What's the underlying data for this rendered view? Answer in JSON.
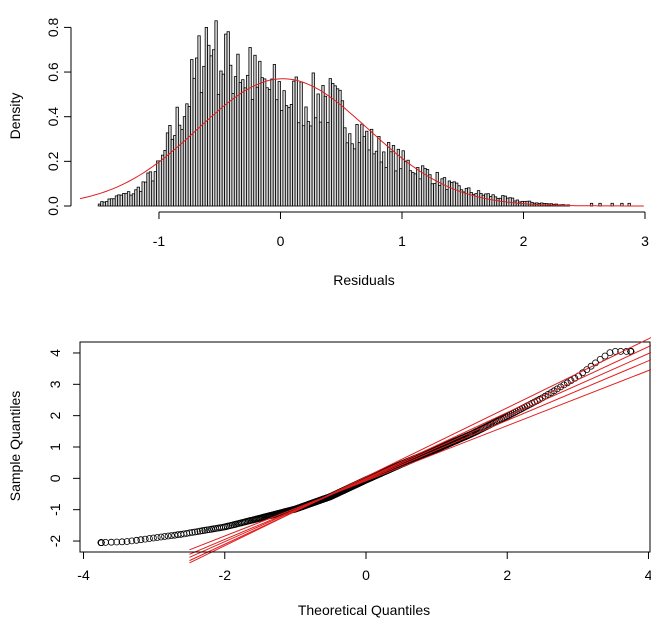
{
  "chart_data": [
    {
      "type": "histogram",
      "xlabel": "Residuals",
      "ylabel": "Density",
      "xlim": [
        -1.65,
        3.0
      ],
      "ylim": [
        0,
        0.86
      ],
      "x_ticks": [
        "-1",
        "0",
        "1",
        "2",
        "3"
      ],
      "y_ticks": [
        "0.0",
        "0.2",
        "0.4",
        "0.6",
        "0.8"
      ],
      "bin_width": 0.02,
      "bin_start": -1.5,
      "bin_profile": [
        [
          -1.5,
          0.01
        ],
        [
          -1.3,
          0.05
        ],
        [
          -1.2,
          0.06
        ],
        [
          -1.0,
          0.17
        ],
        [
          -0.9,
          0.31
        ],
        [
          -0.8,
          0.44
        ],
        [
          -0.7,
          0.57
        ],
        [
          -0.62,
          0.74
        ],
        [
          -0.5,
          0.66
        ],
        [
          -0.3,
          0.59
        ],
        [
          -0.2,
          0.55
        ],
        [
          0.0,
          0.5
        ],
        [
          0.2,
          0.47
        ],
        [
          0.4,
          0.47
        ],
        [
          0.5,
          0.42
        ],
        [
          0.6,
          0.36
        ],
        [
          0.8,
          0.26
        ],
        [
          1.0,
          0.2
        ],
        [
          1.2,
          0.15
        ],
        [
          1.4,
          0.09
        ],
        [
          1.6,
          0.06
        ],
        [
          1.8,
          0.04
        ],
        [
          2.0,
          0.02
        ],
        [
          2.2,
          0.01
        ],
        [
          2.5,
          0.0
        ]
      ],
      "tall_bars": [
        [
          -0.63,
          0.8
        ],
        [
          -0.47,
          0.77
        ],
        [
          -0.27,
          0.71
        ],
        [
          -0.37,
          0.68
        ],
        [
          -0.57,
          0.7
        ],
        [
          0.33,
          0.54
        ]
      ],
      "sparse_tail": [
        2.55,
        2.62,
        2.72,
        2.8,
        2.86
      ],
      "normal_curve": {
        "mean": 0.02,
        "sd": 0.7,
        "color": "#e11d1d"
      },
      "bar_color": "#d9d9d9",
      "bar_stroke": "#000000"
    },
    {
      "type": "scatter",
      "xlabel": "Theoretical Quantiles",
      "ylabel": "Sample Quantiles",
      "xlim": [
        -4.05,
        4.05
      ],
      "ylim": [
        -2.35,
        4.35
      ],
      "x_ticks": [
        "-4",
        "-2",
        "0",
        "2",
        "4"
      ],
      "y_ticks": [
        "-2",
        "-1",
        "0",
        "1",
        "2",
        "3",
        "4"
      ],
      "points_profile": [
        [
          -3.75,
          -2.05
        ],
        [
          -3.4,
          -2.02
        ],
        [
          -3.0,
          -1.9
        ],
        [
          -2.6,
          -1.78
        ],
        [
          -2.0,
          -1.55
        ],
        [
          -1.5,
          -1.27
        ],
        [
          -1.0,
          -0.98
        ],
        [
          -0.5,
          -0.58
        ],
        [
          0.0,
          -0.05
        ],
        [
          0.5,
          0.45
        ],
        [
          1.0,
          0.93
        ],
        [
          1.5,
          1.42
        ],
        [
          2.0,
          1.98
        ],
        [
          2.5,
          2.57
        ],
        [
          3.0,
          3.25
        ],
        [
          3.2,
          3.6
        ],
        [
          3.35,
          3.85
        ],
        [
          3.48,
          4.05
        ],
        [
          3.75,
          4.05
        ]
      ],
      "n_points": 800,
      "point_color": "#000000",
      "qq_lines": [
        {
          "slope": 1.1,
          "intercept": 0.05
        },
        {
          "slope": 1.05,
          "intercept": 0.0
        },
        {
          "slope": 1.0,
          "intercept": -0.02
        },
        {
          "slope": 0.95,
          "intercept": -0.05
        },
        {
          "slope": 0.88,
          "intercept": -0.08
        }
      ],
      "line_color": "#e11d1d"
    }
  ]
}
